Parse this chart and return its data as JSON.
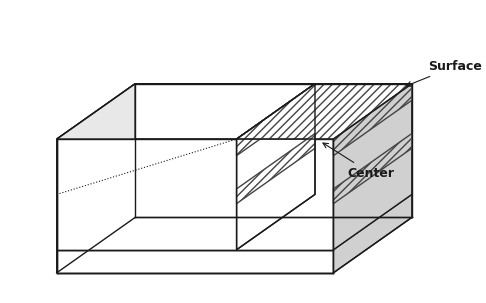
{
  "bg_color": "#ffffff",
  "line_color": "#1a1a1a",
  "hatch_color": "#444444",
  "hatch_pattern": "////",
  "label_surface": "Surface",
  "label_center": "Center",
  "font_size": 9,
  "font_weight": "bold"
}
